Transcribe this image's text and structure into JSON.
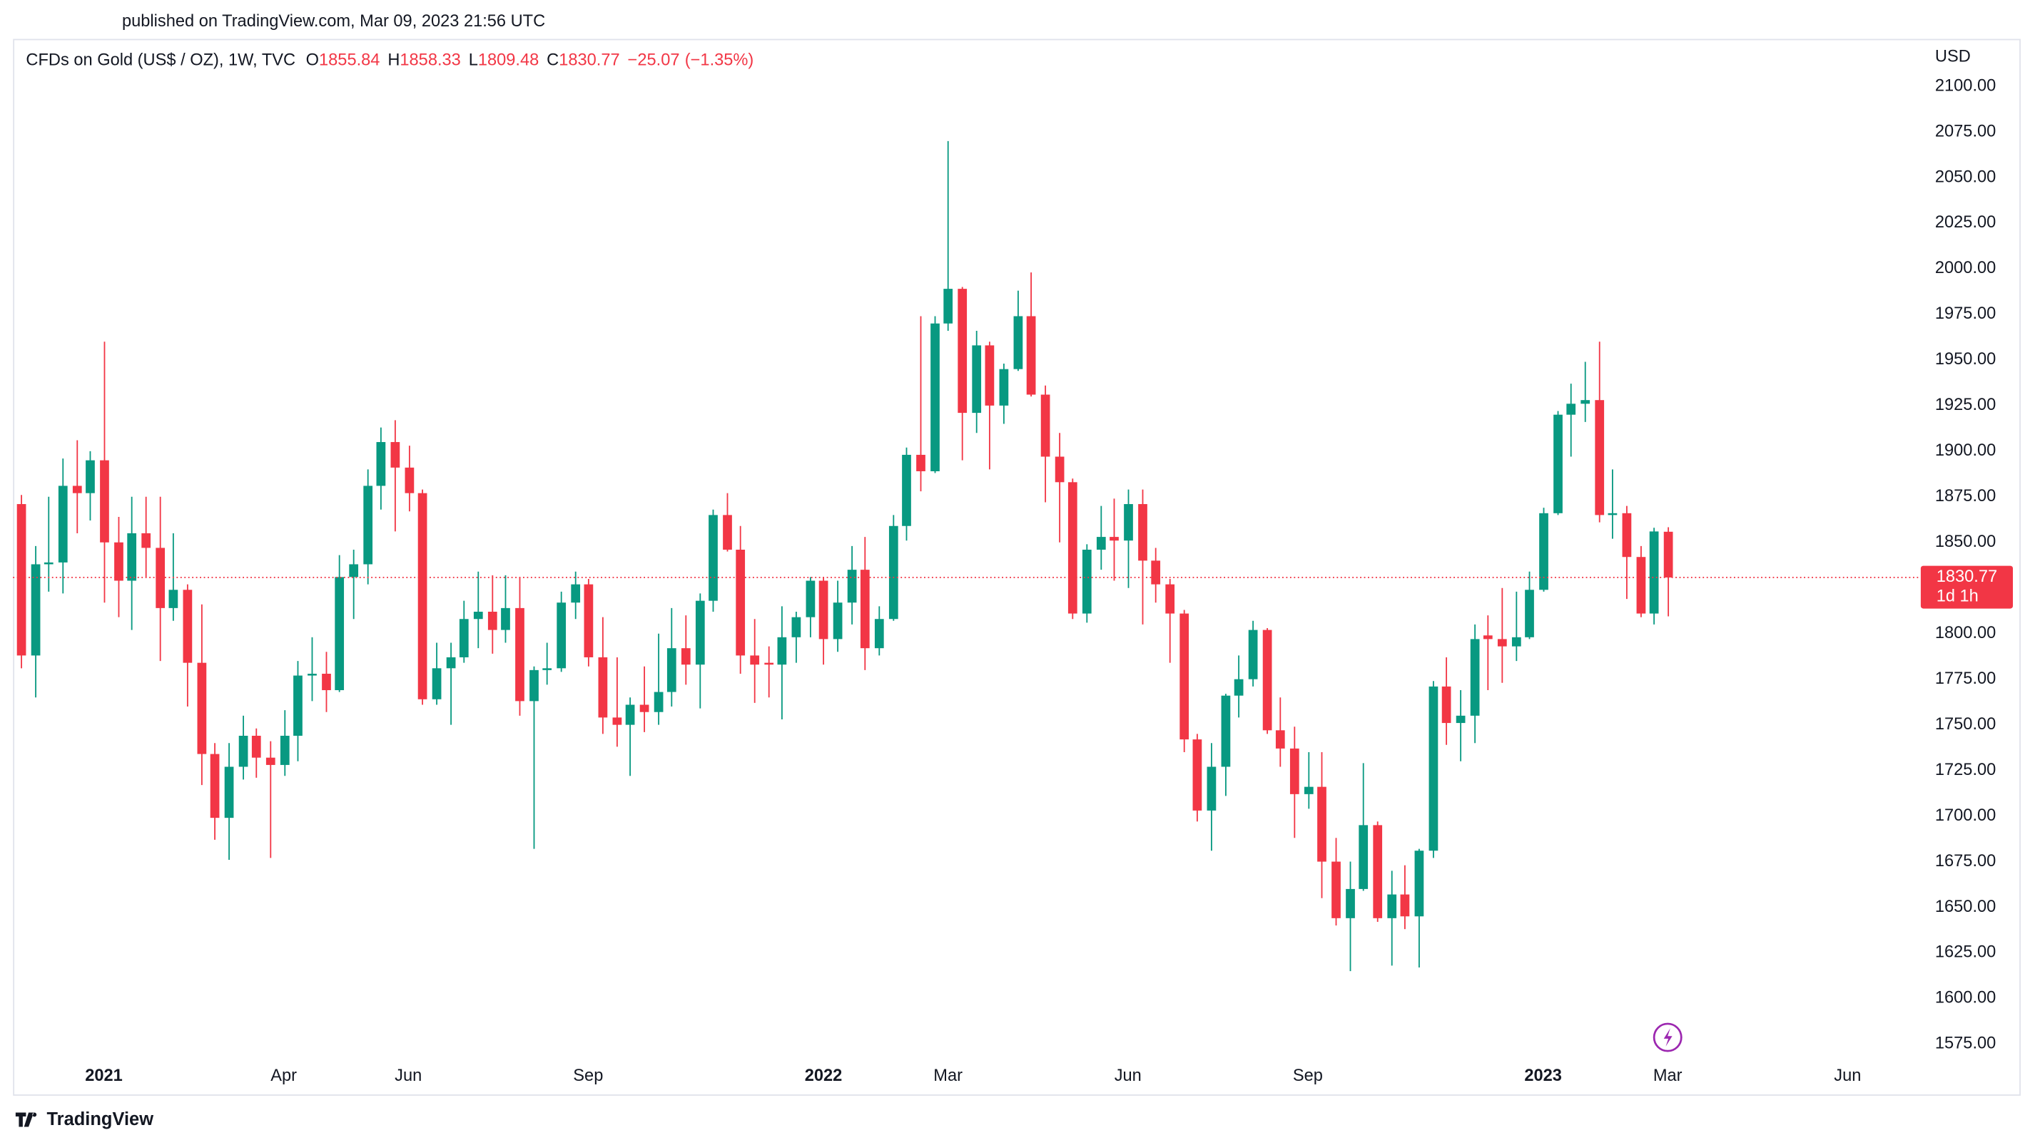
{
  "published": "published on TradingView.com, Mar 09, 2023 21:56 UTC",
  "brand": "TradingView",
  "chart_data": {
    "type": "candlestick",
    "title": "CFDs on Gold (US$ / OZ), 1W, TVC",
    "ohlc_labels": [
      "O",
      "H",
      "L",
      "C"
    ],
    "change": {
      "value": -25.07,
      "label": "−25.07"
    },
    "change_pct": {
      "value": -1.35,
      "label": "(−1.35%)"
    },
    "currency": "USD",
    "countdown": "1d 1h",
    "up_color": "#089981",
    "down_color": "#f23645",
    "open": [
      1871,
      1788,
      1838,
      1839,
      1881,
      1877,
      1895,
      1850,
      1829,
      1855,
      1847,
      1814,
      1824,
      1784,
      1734,
      1699,
      1727,
      1744,
      1732,
      1728,
      1744,
      1777,
      1778,
      1769,
      1831,
      1838,
      1881,
      1905,
      1891,
      1877,
      1764,
      1781,
      1787,
      1808,
      1812,
      1802,
      1814,
      1763,
      1780,
      1781,
      1817,
      1827,
      1787,
      1754,
      1750,
      1761,
      1757,
      1768,
      1792,
      1783,
      1818,
      1865,
      1846,
      1788,
      1784,
      1783,
      1798,
      1809,
      1829,
      1797,
      1817,
      1835,
      1792,
      1808,
      1859,
      1898,
      1889,
      1970,
      1989,
      1921,
      1958,
      1925,
      1945,
      1974,
      1931,
      1897,
      1883,
      1811,
      1846,
      1853,
      1851,
      1871,
      1840,
      1827,
      1811,
      1742,
      1703,
      1727,
      1766,
      1775,
      1802,
      1747,
      1737,
      1712,
      1716,
      1675,
      1644,
      1660,
      1695,
      1644,
      1657,
      1645,
      1681,
      1771,
      1751,
      1755,
      1799,
      1797,
      1793,
      1798,
      1824,
      1866,
      1920,
      1926,
      1928,
      1865,
      1866,
      1842,
      1811,
      1855.84
    ],
    "high": [
      1876,
      1848,
      1875,
      1896,
      1906,
      1900,
      1960,
      1864,
      1875,
      1875,
      1875,
      1855,
      1827,
      1816,
      1740,
      1740,
      1755,
      1748,
      1741,
      1758,
      1785,
      1798,
      1790,
      1843,
      1846,
      1890,
      1913,
      1917,
      1903,
      1879,
      1795,
      1795,
      1818,
      1834,
      1832,
      1832,
      1831,
      1782,
      1795,
      1823,
      1834,
      1830,
      1809,
      1787,
      1765,
      1782,
      1800,
      1814,
      1810,
      1822,
      1868,
      1877,
      1859,
      1808,
      1793,
      1815,
      1812,
      1831,
      1831,
      1829,
      1848,
      1853,
      1815,
      1865,
      1902,
      1974,
      1974,
      2070,
      1990,
      1966,
      1960,
      1948,
      1988,
      1998,
      1936,
      1910,
      1885,
      1849,
      1870,
      1874,
      1879,
      1879,
      1847,
      1830,
      1813,
      1745,
      1740,
      1767,
      1788,
      1807,
      1803,
      1765,
      1749,
      1735,
      1735,
      1688,
      1675,
      1729,
      1697,
      1670,
      1673,
      1682,
      1774,
      1787,
      1769,
      1805,
      1810,
      1825,
      1823,
      1834,
      1869,
      1922,
      1937,
      1949,
      1960,
      1890,
      1870,
      1848,
      1858,
      1858.33
    ],
    "low": [
      1781,
      1765,
      1823,
      1822,
      1855,
      1862,
      1817,
      1809,
      1802,
      1831,
      1785,
      1807,
      1760,
      1717,
      1687,
      1676,
      1720,
      1721,
      1677,
      1722,
      1730,
      1763,
      1757,
      1768,
      1808,
      1827,
      1868,
      1856,
      1867,
      1761,
      1761,
      1750,
      1784,
      1792,
      1789,
      1795,
      1755,
      1682,
      1772,
      1779,
      1808,
      1782,
      1745,
      1738,
      1722,
      1746,
      1750,
      1760,
      1772,
      1759,
      1812,
      1845,
      1778,
      1762,
      1765,
      1753,
      1784,
      1798,
      1783,
      1790,
      1805,
      1780,
      1788,
      1807,
      1851,
      1878,
      1888,
      1966,
      1895,
      1910,
      1890,
      1915,
      1944,
      1930,
      1872,
      1850,
      1808,
      1806,
      1835,
      1829,
      1825,
      1805,
      1817,
      1784,
      1735,
      1697,
      1681,
      1711,
      1754,
      1771,
      1745,
      1727,
      1688,
      1704,
      1655,
      1640,
      1615,
      1659,
      1642,
      1618,
      1638,
      1617,
      1677,
      1739,
      1730,
      1740,
      1769,
      1773,
      1785,
      1797,
      1823,
      1865,
      1897,
      1916,
      1861,
      1852,
      1819,
      1809,
      1805,
      1809.48
    ],
    "close": [
      1788,
      1838,
      1839,
      1881,
      1877,
      1895,
      1850,
      1829,
      1855,
      1847,
      1814,
      1824,
      1784,
      1734,
      1699,
      1727,
      1744,
      1732,
      1728,
      1744,
      1777,
      1778,
      1769,
      1831,
      1838,
      1881,
      1905,
      1891,
      1877,
      1764,
      1781,
      1787,
      1808,
      1812,
      1802,
      1814,
      1763,
      1780,
      1781,
      1817,
      1827,
      1787,
      1754,
      1750,
      1761,
      1757,
      1768,
      1792,
      1783,
      1818,
      1865,
      1846,
      1788,
      1783,
      1783,
      1798,
      1809,
      1829,
      1797,
      1817,
      1835,
      1792,
      1808,
      1859,
      1898,
      1889,
      1970,
      1989,
      1921,
      1958,
      1925,
      1945,
      1974,
      1931,
      1897,
      1883,
      1811,
      1846,
      1853,
      1851,
      1871,
      1840,
      1827,
      1811,
      1742,
      1703,
      1727,
      1766,
      1775,
      1802,
      1747,
      1737,
      1712,
      1716,
      1675,
      1644,
      1660,
      1695,
      1644,
      1657,
      1645,
      1681,
      1771,
      1751,
      1755,
      1797,
      1797,
      1793,
      1798,
      1824,
      1866,
      1920,
      1926,
      1928,
      1865,
      1866,
      1842,
      1811,
      1856,
      1830.77
    ],
    "xlim": [
      -0.56,
      137.1
    ],
    "xticks": [
      {
        "value": 6,
        "label": "2021"
      },
      {
        "value": 19,
        "label": "Apr"
      },
      {
        "value": 28,
        "label": "Jun"
      },
      {
        "value": 41,
        "label": "Sep"
      },
      {
        "value": 58,
        "label": "2022"
      },
      {
        "value": 67,
        "label": "Mar"
      },
      {
        "value": 80,
        "label": "Jun"
      },
      {
        "value": 93,
        "label": "Sep"
      },
      {
        "value": 110,
        "label": "2023"
      },
      {
        "value": 119,
        "label": "Mar"
      },
      {
        "value": 132,
        "label": "Jun"
      }
    ],
    "ylim": [
      1568,
      2126
    ],
    "yticks": [
      {
        "value": 2100,
        "label": "2100.00"
      },
      {
        "value": 2075,
        "label": "2075.00"
      },
      {
        "value": 2050,
        "label": "2050.00"
      },
      {
        "value": 2025,
        "label": "2025.00"
      },
      {
        "value": 2000,
        "label": "2000.00"
      },
      {
        "value": 1975,
        "label": "1975.00"
      },
      {
        "value": 1950,
        "label": "1950.00"
      },
      {
        "value": 1925,
        "label": "1925.00"
      },
      {
        "value": 1900,
        "label": "1900.00"
      },
      {
        "value": 1875,
        "label": "1875.00"
      },
      {
        "value": 1850,
        "label": "1850.00"
      },
      {
        "value": 1825,
        "label": "1825.00"
      },
      {
        "value": 1800,
        "label": "1800.00"
      },
      {
        "value": 1775,
        "label": "1775.00"
      },
      {
        "value": 1750,
        "label": "1750.00"
      },
      {
        "value": 1725,
        "label": "1725.00"
      },
      {
        "value": 1700,
        "label": "1700.00"
      },
      {
        "value": 1675,
        "label": "1675.00"
      },
      {
        "value": 1650,
        "label": "1650.00"
      },
      {
        "value": 1625,
        "label": "1625.00"
      },
      {
        "value": 1600,
        "label": "1600.00"
      },
      {
        "value": 1575,
        "label": "1575.00"
      }
    ],
    "grid": false
  }
}
